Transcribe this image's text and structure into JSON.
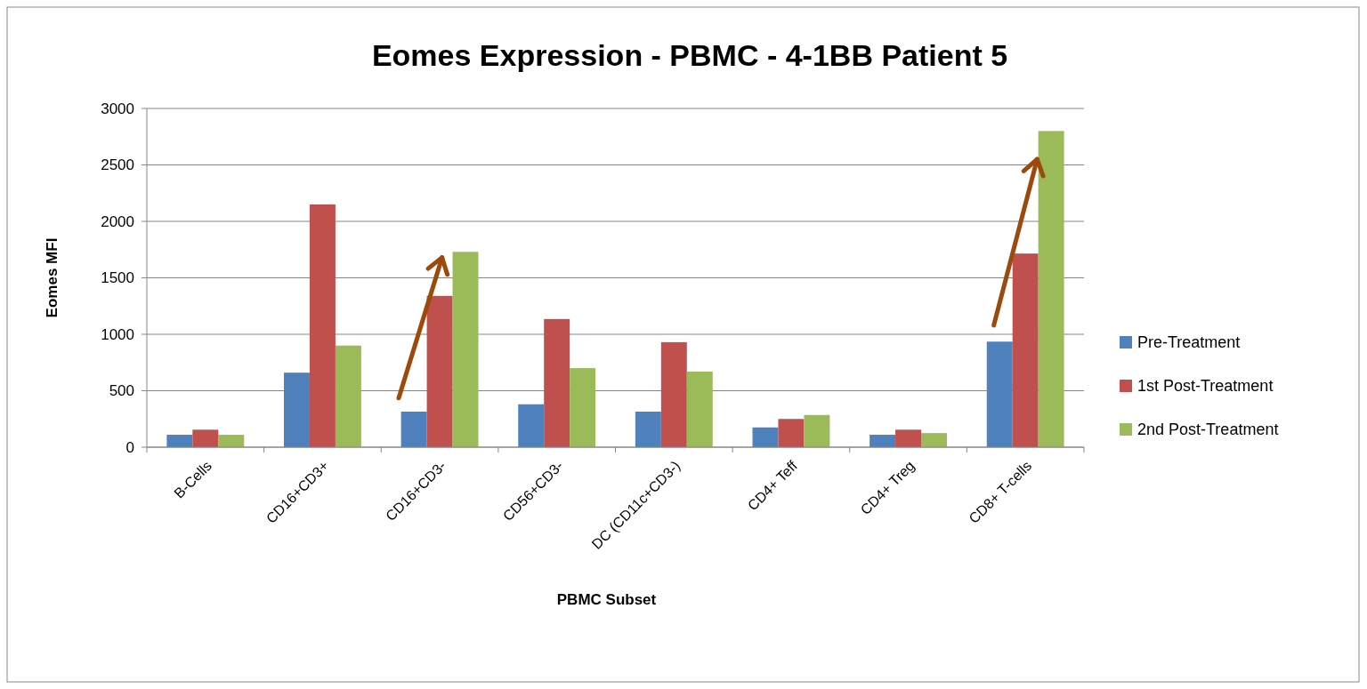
{
  "chart_data": {
    "type": "bar",
    "title": "Eomes Expression - PBMC - 4-1BB Patient 5",
    "xlabel": "PBMC Subset",
    "ylabel": "Eomes MFI",
    "categories": [
      "B-Cells",
      "CD16+CD3+",
      "CD16+CD3-",
      "CD56+CD3-",
      "DC (CD11c+CD3-)",
      "CD4+ Teff",
      "CD4+ Treg",
      "CD8+ T-cells"
    ],
    "series": [
      {
        "name": "Pre-Treatment",
        "color": "#4f81bd",
        "values": [
          110,
          660,
          315,
          380,
          315,
          175,
          110,
          935
        ]
      },
      {
        "name": "1st Post-Treatment",
        "color": "#c0504d",
        "values": [
          155,
          2150,
          1340,
          1135,
          930,
          250,
          155,
          1715
        ]
      },
      {
        "name": "2nd Post-Treatment",
        "color": "#9bbb59",
        "values": [
          110,
          900,
          1730,
          700,
          670,
          285,
          125,
          2800
        ]
      }
    ],
    "ylim": [
      0,
      3000
    ],
    "yticks": [
      0,
      500,
      1000,
      1500,
      2000,
      2500,
      3000
    ],
    "grid": "y",
    "legend": "right"
  }
}
